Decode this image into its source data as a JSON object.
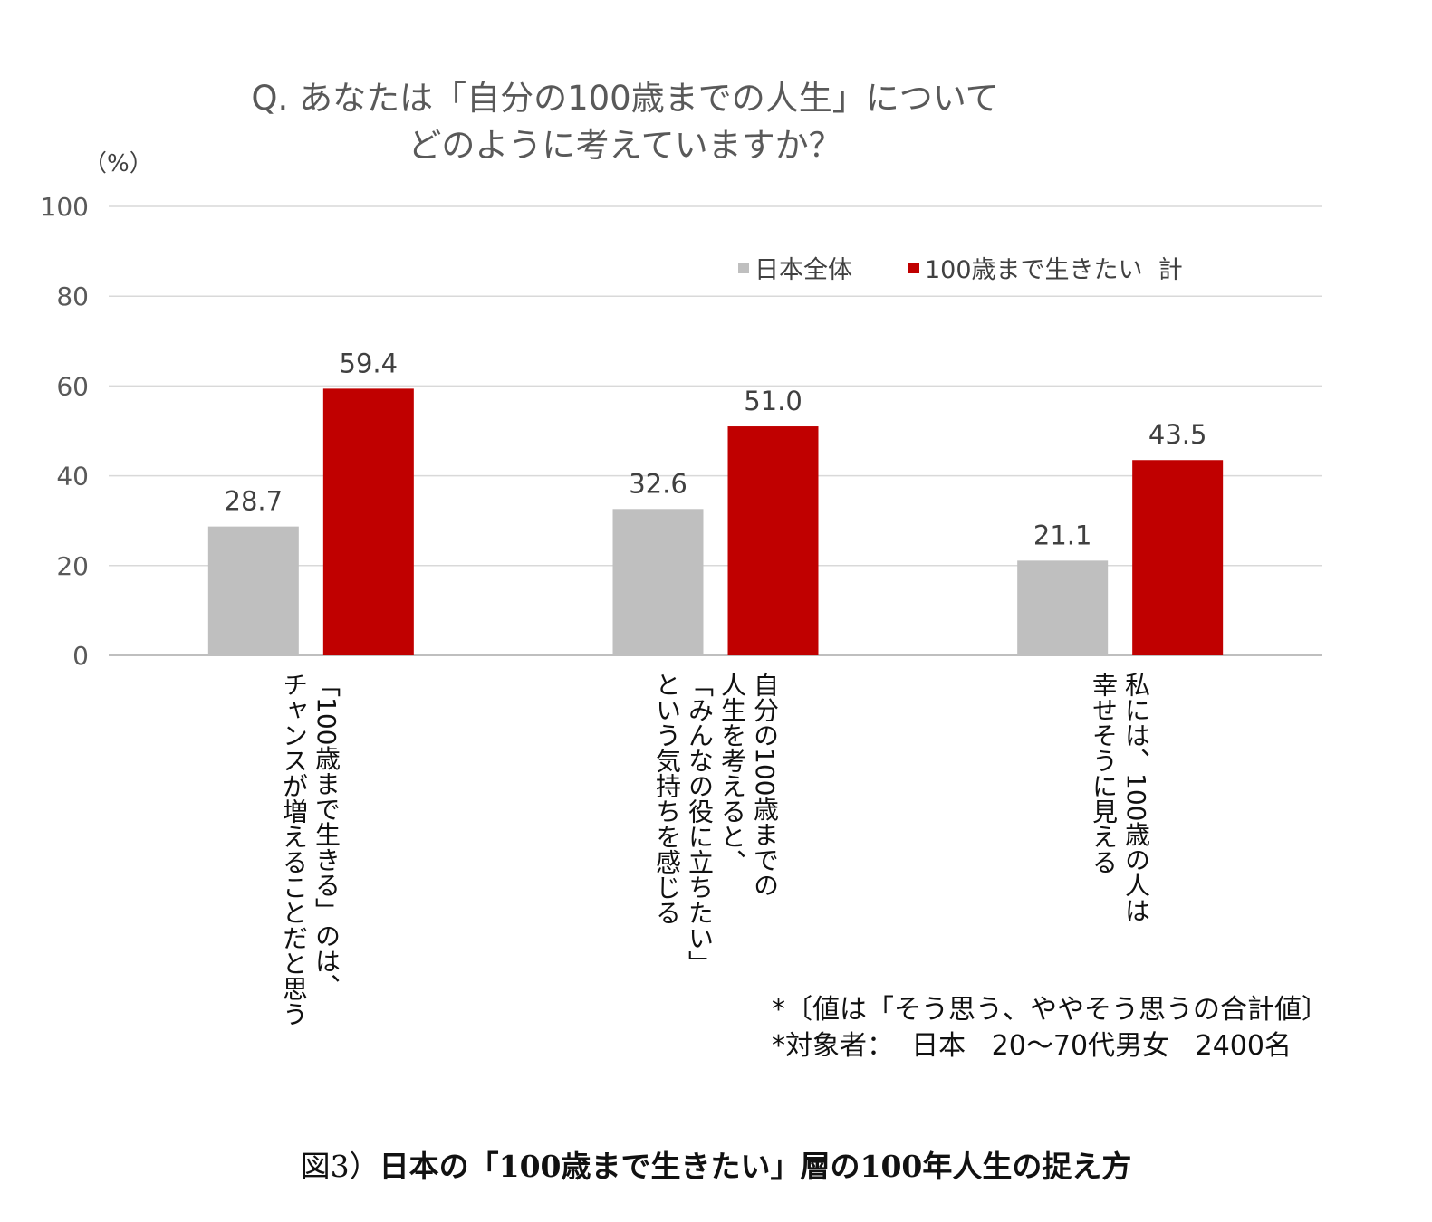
{
  "chart_data": {
    "type": "bar",
    "title_line1": "Q.  あなたは「自分の100歳までの人生」について",
    "title_line2": "どのように考えていますか？",
    "ylabel": "（%）",
    "ylim": [
      0,
      100
    ],
    "yticks": [
      "0",
      "20",
      "40",
      "60",
      "80",
      "100"
    ],
    "grid": true,
    "legend_position": "top-right",
    "categories": [
      [
        "「100歳まで生きる」のは、",
        "チャンスが増えることだと思う"
      ],
      [
        "自分の100歳までの",
        "人生を考えると、",
        "「みんなの役に立ちたい」",
        "という気持ちを感じる"
      ],
      [
        "私には、100歳の人は",
        "幸せそうに見える"
      ]
    ],
    "series": [
      {
        "name": "日本全体",
        "color": "#bfbfbf",
        "values": [
          28.7,
          32.6,
          21.1
        ],
        "labels": [
          "28.7",
          "32.6",
          "21.1"
        ]
      },
      {
        "name": "100歳まで生きたい  計",
        "color": "#c00000",
        "values": [
          59.4,
          51.0,
          43.5
        ],
        "labels": [
          "59.4",
          "51.0",
          "43.5"
        ]
      }
    ]
  },
  "notes": {
    "line1": "*〔値は「そう思う、ややそう思うの合計値〕",
    "line2": "*対象者：  日本   20～70代男女   2400名"
  },
  "caption": {
    "prefix": "図3）",
    "text": "日本の「100歳まで生きたい」層の100年人生の捉え方"
  }
}
